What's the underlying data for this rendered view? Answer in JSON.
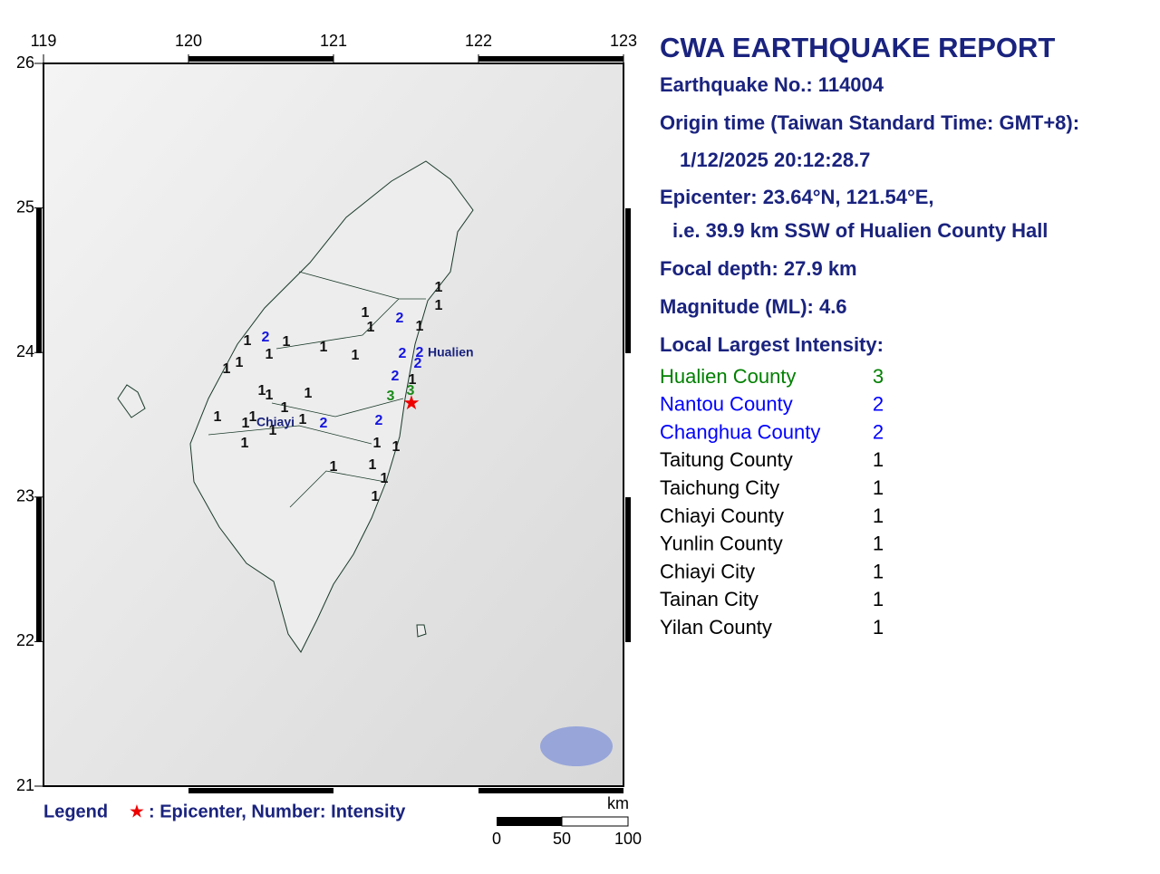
{
  "map": {
    "lon_ticks": [
      119,
      120,
      121,
      122,
      123
    ],
    "lat_ticks": [
      21,
      22,
      23,
      24,
      25,
      26
    ],
    "place_labels": [
      "Hualien",
      "Chiayi"
    ],
    "stations": [
      1,
      1,
      1,
      2,
      1,
      1,
      1,
      2,
      1,
      1,
      1,
      1,
      2,
      2,
      2,
      1,
      1,
      2,
      1,
      1,
      1,
      1,
      1,
      3,
      3,
      1,
      1,
      1,
      1,
      2,
      2,
      1,
      1,
      1,
      1,
      1,
      1,
      1,
      1
    ],
    "epicenter_symbol": "★"
  },
  "report": {
    "title": "CWA EARTHQUAKE REPORT",
    "lines": [
      "Earthquake No.: 114004",
      "Origin time (Taiwan Standard Time: GMT+8):",
      "1/12/2025 20:12:28.7",
      "Epicenter: 23.64°N, 121.54°E,",
      "i.e. 39.9 km SSW of Hualien County Hall",
      "Focal depth: 27.9 km",
      "Magnitude (ML): 4.6",
      "Local Largest Intensity:"
    ],
    "intensities": [
      {
        "name": "Hualien County",
        "value": 3,
        "color": "#008000"
      },
      {
        "name": "Nantou County",
        "value": 2,
        "color": "#0000ff"
      },
      {
        "name": "Changhua County",
        "value": 2,
        "color": "#0000ff"
      },
      {
        "name": "Taitung County",
        "value": 1,
        "color": "#000000"
      },
      {
        "name": "Taichung City",
        "value": 1,
        "color": "#000000"
      },
      {
        "name": "Chiayi County",
        "value": 1,
        "color": "#000000"
      },
      {
        "name": "Yunlin County",
        "value": 1,
        "color": "#000000"
      },
      {
        "name": "Chiayi City",
        "value": 1,
        "color": "#000000"
      },
      {
        "name": "Tainan City",
        "value": 1,
        "color": "#000000"
      },
      {
        "name": "Yilan County",
        "value": 1,
        "color": "#000000"
      }
    ]
  },
  "legend": {
    "label": "Legend",
    "symbol": "★",
    "text": ": Epicenter, Number: Intensity"
  },
  "scale": {
    "unit": "km",
    "ticks": [
      "0",
      "50",
      "100"
    ]
  }
}
